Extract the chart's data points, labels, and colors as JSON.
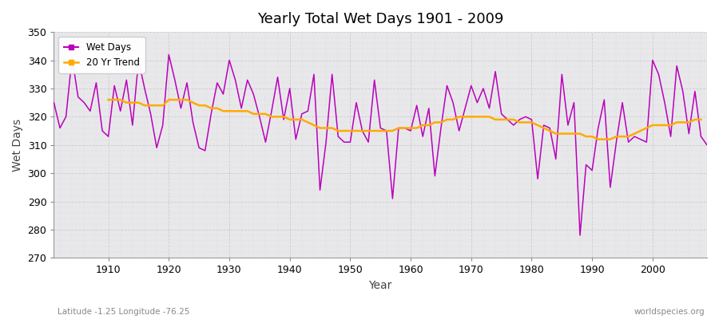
{
  "title": "Yearly Total Wet Days 1901 - 2009",
  "xlabel": "Year",
  "ylabel": "Wet Days",
  "subtitle_left": "Latitude -1.25 Longitude -76.25",
  "subtitle_right": "worldspecies.org",
  "fig_bg_color": "#ffffff",
  "plot_bg_color": "#e8e8eb",
  "wet_days_color": "#bb00bb",
  "trend_color": "#ffaa00",
  "ylim": [
    270,
    350
  ],
  "xlim": [
    1901,
    2009
  ],
  "years": [
    1901,
    1902,
    1903,
    1904,
    1905,
    1906,
    1907,
    1908,
    1909,
    1910,
    1911,
    1912,
    1913,
    1914,
    1915,
    1916,
    1917,
    1918,
    1919,
    1920,
    1921,
    1922,
    1923,
    1924,
    1925,
    1926,
    1927,
    1928,
    1929,
    1930,
    1931,
    1932,
    1933,
    1934,
    1935,
    1936,
    1937,
    1938,
    1939,
    1940,
    1941,
    1942,
    1943,
    1944,
    1945,
    1946,
    1947,
    1948,
    1949,
    1950,
    1951,
    1952,
    1953,
    1954,
    1955,
    1956,
    1957,
    1958,
    1959,
    1960,
    1961,
    1962,
    1963,
    1964,
    1965,
    1966,
    1967,
    1968,
    1969,
    1970,
    1971,
    1972,
    1973,
    1974,
    1975,
    1976,
    1977,
    1978,
    1979,
    1980,
    1981,
    1982,
    1983,
    1984,
    1985,
    1986,
    1987,
    1988,
    1989,
    1990,
    1991,
    1992,
    1993,
    1994,
    1995,
    1996,
    1997,
    1998,
    1999,
    2000,
    2001,
    2002,
    2003,
    2004,
    2005,
    2006,
    2007,
    2008,
    2009
  ],
  "wet_days": [
    325,
    316,
    320,
    341,
    327,
    325,
    322,
    332,
    315,
    313,
    331,
    322,
    333,
    317,
    340,
    330,
    321,
    309,
    317,
    342,
    333,
    323,
    332,
    318,
    309,
    308,
    321,
    332,
    328,
    340,
    333,
    323,
    333,
    328,
    320,
    311,
    322,
    334,
    319,
    330,
    312,
    321,
    322,
    335,
    294,
    311,
    335,
    313,
    311,
    311,
    325,
    315,
    311,
    333,
    316,
    315,
    291,
    316,
    316,
    315,
    324,
    313,
    323,
    299,
    316,
    331,
    325,
    315,
    323,
    331,
    325,
    330,
    323,
    336,
    321,
    319,
    317,
    319,
    320,
    319,
    298,
    317,
    316,
    305,
    335,
    317,
    325,
    278,
    303,
    301,
    316,
    326,
    295,
    311,
    325,
    311,
    313,
    312,
    311,
    340,
    335,
    325,
    313,
    338,
    329,
    314,
    329,
    313,
    310
  ],
  "trend_values": [
    null,
    null,
    null,
    null,
    null,
    null,
    null,
    null,
    null,
    326,
    326,
    326,
    325,
    325,
    325,
    324,
    324,
    324,
    324,
    326,
    326,
    326,
    326,
    325,
    324,
    324,
    323,
    323,
    322,
    322,
    322,
    322,
    322,
    321,
    321,
    321,
    320,
    320,
    320,
    319,
    319,
    319,
    318,
    317,
    316,
    316,
    316,
    315,
    315,
    315,
    315,
    315,
    315,
    315,
    315,
    315,
    315,
    316,
    316,
    316,
    316,
    317,
    317,
    318,
    318,
    319,
    319,
    320,
    320,
    320,
    320,
    320,
    320,
    319,
    319,
    319,
    319,
    318,
    318,
    318,
    317,
    316,
    315,
    314,
    314,
    314,
    314,
    314,
    313,
    313,
    312,
    312,
    312,
    313,
    313,
    313,
    314,
    315,
    316,
    317,
    317,
    317,
    317,
    318,
    318,
    318,
    319,
    319,
    null
  ]
}
